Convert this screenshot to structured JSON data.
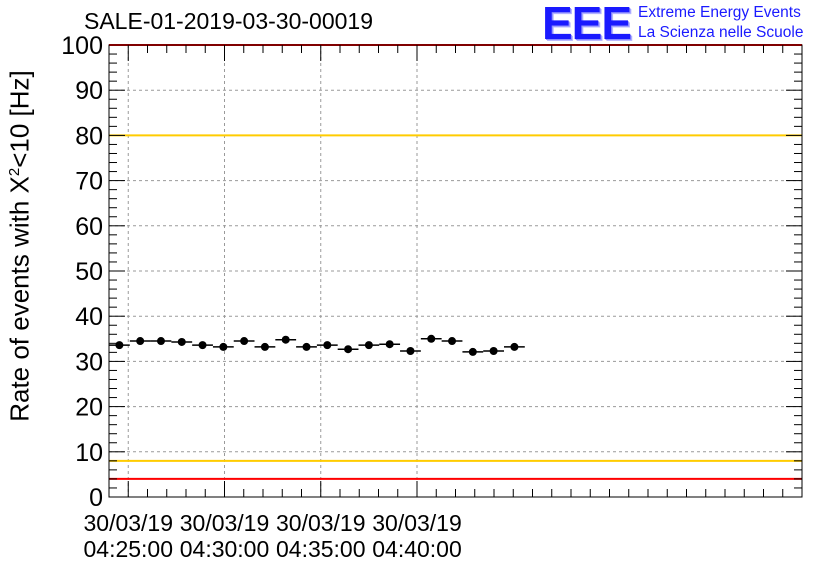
{
  "chart_data": {
    "type": "scatter",
    "title": "SALE-01-2019-03-30-00019",
    "ylabel": {
      "prefix": "Rate of events with ",
      "symbol": "X",
      "superscript": "2",
      "suffix": "<10 [Hz]"
    },
    "xlabel": "",
    "ylim": [
      0,
      100
    ],
    "yticks": [
      "0",
      "10",
      "20",
      "30",
      "40",
      "50",
      "60",
      "70",
      "80",
      "90",
      "100"
    ],
    "xlim_min": [
      24,
      60
    ],
    "xticks": [
      {
        "date": "30/03/19",
        "time": "04:25:00",
        "min": 25
      },
      {
        "date": "30/03/19",
        "time": "04:30:00",
        "min": 30
      },
      {
        "date": "30/03/19",
        "time": "04:35:00",
        "min": 35
      },
      {
        "date": "30/03/19",
        "time": "04:40:00",
        "min": 40
      }
    ],
    "bin_width_min": 1.08,
    "series": [
      {
        "name": "rate",
        "x_min": [
          24.54,
          25.62,
          26.7,
          27.78,
          28.86,
          29.94,
          31.02,
          32.1,
          33.18,
          34.26,
          35.34,
          36.42,
          37.5,
          38.58,
          39.66,
          40.74,
          41.82,
          42.9,
          43.98,
          45.06
        ],
        "values": [
          33.6,
          34.5,
          34.5,
          34.3,
          33.6,
          33.2,
          34.5,
          33.2,
          34.8,
          33.2,
          33.6,
          32.7,
          33.6,
          33.8,
          32.3,
          35.0,
          34.5,
          32.1,
          32.3,
          33.2
        ]
      }
    ],
    "reference_lines": [
      {
        "name": "upper-red",
        "value": 100,
        "color": "#ff0000"
      },
      {
        "name": "upper-yellow",
        "value": 80,
        "color": "#ffcc00"
      },
      {
        "name": "lower-yellow",
        "value": 8,
        "color": "#ffcc00"
      },
      {
        "name": "lower-red",
        "value": 4,
        "color": "#ff0000"
      }
    ],
    "grid": true
  },
  "logo": {
    "mark": "EEE",
    "line1": "Extreme Energy Events",
    "line2": "La Scienza nelle Scuole"
  }
}
